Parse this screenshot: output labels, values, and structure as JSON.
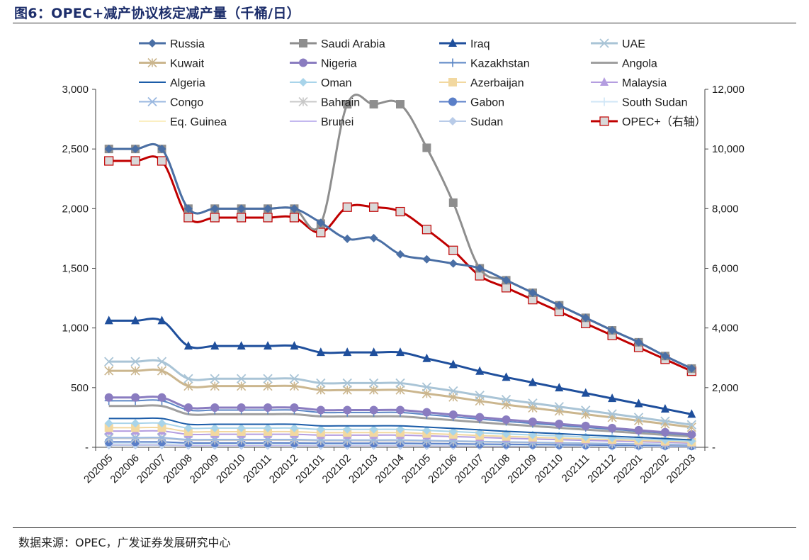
{
  "header": {
    "title": "图6：OPEC+减产协议核定减产量（千桶/日）"
  },
  "footer": {
    "source": "数据来源：OPEC，广发证券发展研究中心"
  },
  "chart_data": {
    "type": "line",
    "x": [
      "202005",
      "202006",
      "202007",
      "202008",
      "202009",
      "202010",
      "202011",
      "202012",
      "202101",
      "202102",
      "202103",
      "202104",
      "202105",
      "202106",
      "202107",
      "202108",
      "202109",
      "202110",
      "202111",
      "202112",
      "202201",
      "202202",
      "202203"
    ],
    "y_left": {
      "ticks": [
        0,
        500,
        1000,
        1500,
        2000,
        2500,
        3000
      ],
      "tick_labels": [
        "-",
        "500",
        "1,000",
        "1,500",
        "2,000",
        "2,500",
        "3,000"
      ],
      "lim": [
        0,
        3000
      ]
    },
    "y_right": {
      "ticks": [
        0,
        2000,
        4000,
        6000,
        8000,
        10000,
        12000
      ],
      "tick_labels": [
        "-",
        "2,000",
        "4,000",
        "6,000",
        "8,000",
        "10,000",
        "12,000"
      ],
      "lim": [
        0,
        12000
      ]
    },
    "legend_placement": "top",
    "series": [
      {
        "name": "Russia",
        "axis": "left",
        "color": "#4a6fa5",
        "marker": "diamond",
        "width": 3,
        "values": [
          2500,
          2500,
          2500,
          2000,
          2000,
          2000,
          2000,
          2000,
          1882,
          1747,
          1753,
          1617,
          1576,
          1540,
          1500,
          1400,
          1295,
          1190,
          1085,
          980,
          880,
          765,
          660
        ]
      },
      {
        "name": "Saudi Arabia",
        "axis": "left",
        "color": "#8e8e8e",
        "marker": "square",
        "width": 3,
        "values": [
          2500,
          2500,
          2500,
          2000,
          2000,
          2000,
          2000,
          2000,
          1875,
          2875,
          2875,
          2875,
          2510,
          2050,
          1500,
          1400,
          1295,
          1190,
          1085,
          980,
          880,
          765,
          660
        ]
      },
      {
        "name": "Iraq",
        "axis": "left",
        "color": "#1f4f9c",
        "marker": "triangle",
        "width": 3,
        "values": [
          1061,
          1061,
          1061,
          849,
          849,
          849,
          849,
          849,
          795,
          795,
          795,
          795,
          744,
          693,
          637,
          587,
          543,
          498,
          454,
          409,
          365,
          321,
          277
        ]
      },
      {
        "name": "UAE",
        "axis": "left",
        "color": "#a9c4d6",
        "marker": "x",
        "width": 3,
        "values": [
          718,
          718,
          718,
          575,
          575,
          575,
          575,
          575,
          538,
          538,
          538,
          538,
          505,
          472,
          435,
          400,
          370,
          340,
          310,
          280,
          250,
          219,
          189
        ]
      },
      {
        "name": "Kuwait",
        "axis": "left",
        "color": "#cbb68e",
        "marker": "star",
        "width": 3,
        "values": [
          641,
          641,
          641,
          513,
          513,
          513,
          513,
          513,
          480,
          480,
          480,
          480,
          450,
          421,
          388,
          357,
          330,
          303,
          276,
          250,
          223,
          196,
          168
        ]
      },
      {
        "name": "Nigeria",
        "axis": "left",
        "color": "#8a7cc0",
        "marker": "circle",
        "width": 3,
        "values": [
          417,
          417,
          417,
          333,
          333,
          333,
          333,
          333,
          312,
          312,
          312,
          312,
          293,
          273,
          252,
          232,
          214,
          196,
          179,
          161,
          143,
          126,
          108
        ]
      },
      {
        "name": "Kazakhstan",
        "axis": "left",
        "color": "#5b86c5",
        "marker": "plus",
        "width": 2,
        "values": [
          390,
          390,
          390,
          312,
          312,
          312,
          312,
          312,
          292,
          292,
          292,
          292,
          274,
          256,
          236,
          217,
          200,
          184,
          167,
          151,
          134,
          118,
          101
        ]
      },
      {
        "name": "Angola",
        "axis": "left",
        "color": "#9f9f9f",
        "marker": "none",
        "width": 3,
        "values": [
          346,
          346,
          346,
          277,
          277,
          277,
          277,
          277,
          259,
          259,
          259,
          259,
          243,
          227,
          210,
          193,
          178,
          163,
          148,
          134,
          119,
          104,
          90
        ]
      },
      {
        "name": "Algeria",
        "axis": "left",
        "color": "#1b5ca8",
        "marker": "none",
        "width": 2,
        "values": [
          241,
          241,
          241,
          193,
          193,
          193,
          193,
          193,
          180,
          180,
          180,
          180,
          169,
          158,
          146,
          134,
          124,
          114,
          103,
          93,
          83,
          73,
          62
        ]
      },
      {
        "name": "Oman",
        "axis": "left",
        "color": "#a8d4ea",
        "marker": "diamond",
        "width": 2,
        "values": [
          201,
          201,
          201,
          161,
          161,
          161,
          161,
          161,
          150,
          150,
          150,
          150,
          141,
          132,
          122,
          112,
          103,
          95,
          86,
          78,
          69,
          61,
          52
        ]
      },
      {
        "name": "Azerbaijan",
        "axis": "left",
        "color": "#f2d8a0",
        "marker": "square",
        "width": 2,
        "values": [
          164,
          164,
          164,
          131,
          131,
          131,
          131,
          131,
          123,
          123,
          123,
          123,
          115,
          108,
          99,
          91,
          84,
          77,
          70,
          64,
          57,
          50,
          43
        ]
      },
      {
        "name": "Malaysia",
        "axis": "left",
        "color": "#b49de0",
        "marker": "triangle",
        "width": 2,
        "values": [
          136,
          136,
          136,
          109,
          109,
          109,
          109,
          109,
          102,
          102,
          102,
          102,
          96,
          90,
          83,
          76,
          70,
          64,
          58,
          53,
          47,
          41,
          35
        ]
      },
      {
        "name": "Congo",
        "axis": "left",
        "color": "#9ab8e0",
        "marker": "x",
        "width": 2,
        "values": [
          81,
          81,
          81,
          65,
          65,
          65,
          65,
          65,
          61,
          61,
          61,
          61,
          57,
          53,
          49,
          45,
          42,
          38,
          35,
          31,
          28,
          25,
          21
        ]
      },
      {
        "name": "Bahrain",
        "axis": "left",
        "color": "#c8c8c8",
        "marker": "star",
        "width": 2,
        "values": [
          74,
          74,
          74,
          59,
          59,
          59,
          59,
          59,
          55,
          55,
          55,
          55,
          52,
          48,
          45,
          41,
          38,
          35,
          32,
          29,
          25,
          22,
          19
        ]
      },
      {
        "name": "Gabon",
        "axis": "left",
        "color": "#5a7fc8",
        "marker": "circle",
        "width": 2,
        "values": [
          45,
          45,
          45,
          36,
          36,
          36,
          36,
          36,
          34,
          34,
          34,
          34,
          32,
          30,
          27,
          25,
          23,
          21,
          19,
          17,
          16,
          14,
          12
        ]
      },
      {
        "name": "South Sudan",
        "axis": "left",
        "color": "#cfe6f7",
        "marker": "plus",
        "width": 2,
        "values": [
          32,
          32,
          32,
          26,
          26,
          26,
          26,
          26,
          24,
          24,
          24,
          24,
          23,
          21,
          20,
          18,
          17,
          15,
          14,
          12,
          11,
          10,
          8
        ]
      },
      {
        "name": "Eq. Guinea",
        "axis": "left",
        "color": "#fbefc2",
        "marker": "none",
        "width": 2,
        "values": [
          30,
          30,
          30,
          24,
          24,
          24,
          24,
          24,
          22,
          22,
          22,
          22,
          21,
          20,
          18,
          17,
          15,
          14,
          13,
          11,
          10,
          9,
          8
        ]
      },
      {
        "name": "Brunei",
        "axis": "left",
        "color": "#c3b8ef",
        "marker": "none",
        "width": 2,
        "values": [
          23,
          23,
          23,
          18,
          18,
          18,
          18,
          18,
          17,
          17,
          17,
          17,
          16,
          15,
          14,
          13,
          12,
          11,
          10,
          9,
          8,
          7,
          6
        ]
      },
      {
        "name": "Sudan",
        "axis": "left",
        "color": "#b8cbe8",
        "marker": "diamond",
        "width": 2,
        "values": [
          18,
          18,
          18,
          14,
          14,
          14,
          14,
          14,
          13,
          13,
          13,
          13,
          12,
          12,
          11,
          10,
          9,
          8,
          8,
          7,
          6,
          5,
          5
        ]
      },
      {
        "name": "OPEC+（右轴）",
        "axis": "right",
        "color": "#c00000",
        "marker": "square-open",
        "width": 3,
        "values": [
          9600,
          9600,
          9600,
          7700,
          7700,
          7700,
          7700,
          7700,
          7200,
          8050,
          8050,
          7900,
          7300,
          6600,
          5750,
          5350,
          4950,
          4550,
          4150,
          3750,
          3350,
          2950,
          2550
        ]
      }
    ]
  }
}
